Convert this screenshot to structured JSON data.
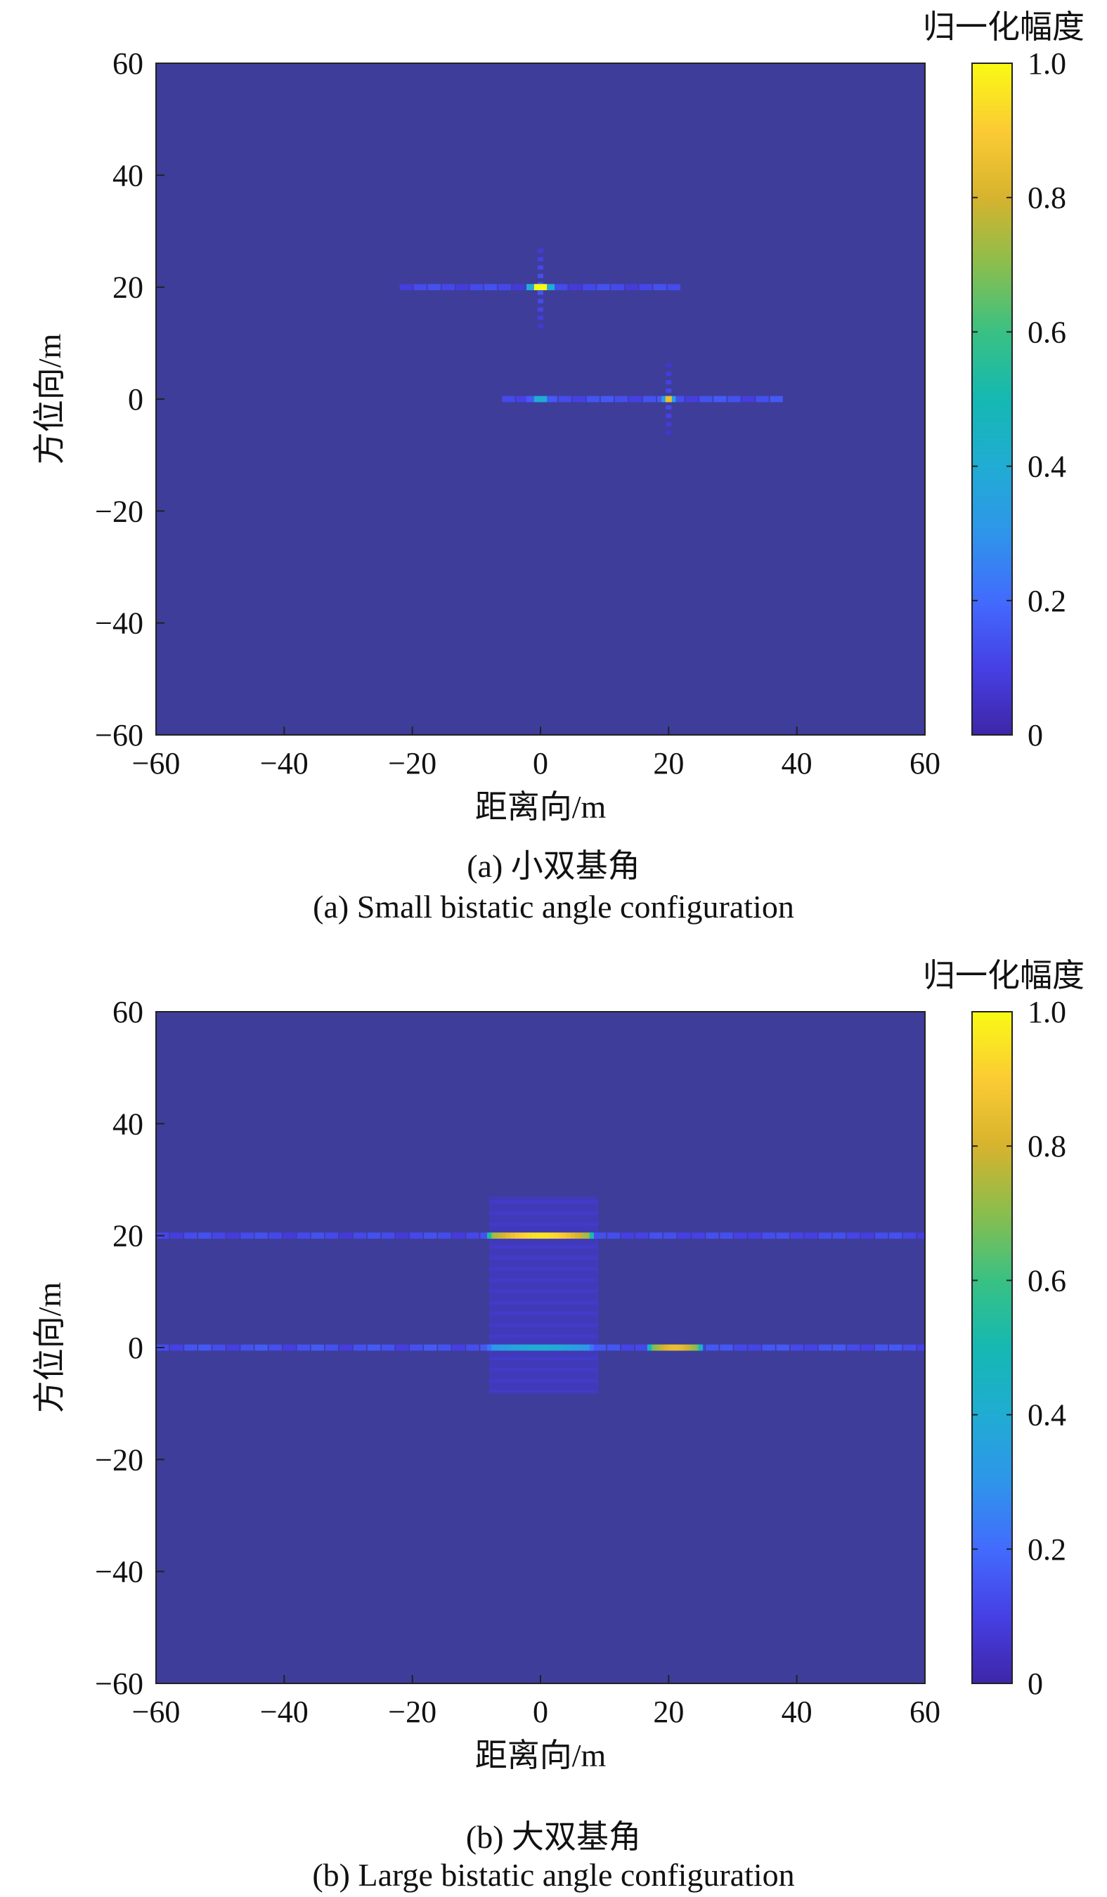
{
  "chart_data": [
    {
      "type": "heatmap",
      "caption_zh": "(a) 小双基角",
      "caption_en": "(a) Small bistatic angle configuration",
      "xlabel": "距离向/m",
      "ylabel": "方位向/m",
      "colorbar_label": "归一化幅度",
      "xlim": [
        -60,
        60
      ],
      "ylim": [
        -60,
        60
      ],
      "xticks": [
        "−60",
        "−40",
        "−20",
        "0",
        "20",
        "40",
        "60"
      ],
      "yticks": [
        "60",
        "40",
        "20",
        "0",
        "−20",
        "−40",
        "−60"
      ],
      "colorbar_range": [
        0,
        1
      ],
      "colorbar_ticks": [
        "1.0",
        "0.8",
        "0.6",
        "0.4",
        "0.2",
        "0"
      ],
      "colormap": "parula",
      "background_color": "#3e3d9a",
      "targets": [
        {
          "x": 0,
          "y": 20,
          "peak": 1.0,
          "x_halfwidth": 1.0
        },
        {
          "x": 20,
          "y": 0,
          "peak": 0.85,
          "x_halfwidth": 0.5
        },
        {
          "x": 0,
          "y": 0,
          "peak": 0.4,
          "x_halfwidth": 1.0
        }
      ],
      "sidelobes": [
        {
          "y": 20,
          "x_from": -22,
          "x_to": 20,
          "level": 0.14
        },
        {
          "y": 0,
          "x_from": -6,
          "x_to": 38,
          "level": 0.16
        }
      ],
      "vertical_sidelobes": [
        {
          "x": 0,
          "y_from": 13,
          "y_to": 27,
          "level": 0.16
        },
        {
          "x": 20,
          "y_from": -6,
          "y_to": 6,
          "level": 0.14
        }
      ]
    },
    {
      "type": "heatmap",
      "caption_zh": "(b) 大双基角",
      "caption_en": "(b) Large bistatic angle configuration",
      "xlabel": "距离向/m",
      "ylabel": "方位向/m",
      "colorbar_label": "归一化幅度",
      "xlim": [
        -60,
        60
      ],
      "ylim": [
        -60,
        60
      ],
      "xticks": [
        "−60",
        "−40",
        "−20",
        "0",
        "20",
        "40",
        "60"
      ],
      "yticks": [
        "60",
        "40",
        "20",
        "0",
        "−20",
        "−40",
        "−60"
      ],
      "colorbar_range": [
        0,
        1
      ],
      "colorbar_ticks": [
        "1.0",
        "0.8",
        "0.6",
        "0.4",
        "0.2",
        "0"
      ],
      "colormap": "parula",
      "background_color": "#3e3d9a",
      "targets": [
        {
          "x_from": -8,
          "x_to": 8,
          "y": 20,
          "peak": 0.95
        },
        {
          "x_from": -8,
          "x_to": 8,
          "y": 0,
          "peak": 0.4
        },
        {
          "x_from": 17,
          "x_to": 25,
          "y": 0,
          "peak": 0.85
        }
      ],
      "sidelobes": [
        {
          "y": 20,
          "x_from": -60,
          "x_to": 60,
          "level": 0.14
        },
        {
          "y": 0,
          "x_from": -60,
          "x_to": 60,
          "level": 0.16
        }
      ],
      "blur_region": {
        "x_from": -8,
        "x_to": 9,
        "y_from": -8,
        "y_to": 27,
        "level": 0.07
      }
    }
  ]
}
